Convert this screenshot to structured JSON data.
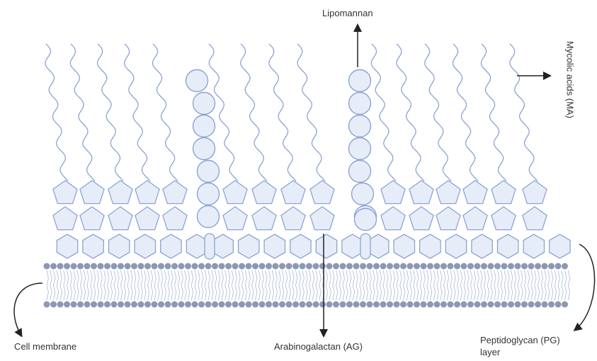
{
  "labels": {
    "lipomannan": "Lipomannan",
    "mycolic_acids": "Mycolic acids (MA)",
    "cell_membrane": "Cell membrane",
    "arabinogalactan": "Arabinogalactan (AG)",
    "peptidoglycan": "Peptidoglycan (PG) layer"
  }
}
